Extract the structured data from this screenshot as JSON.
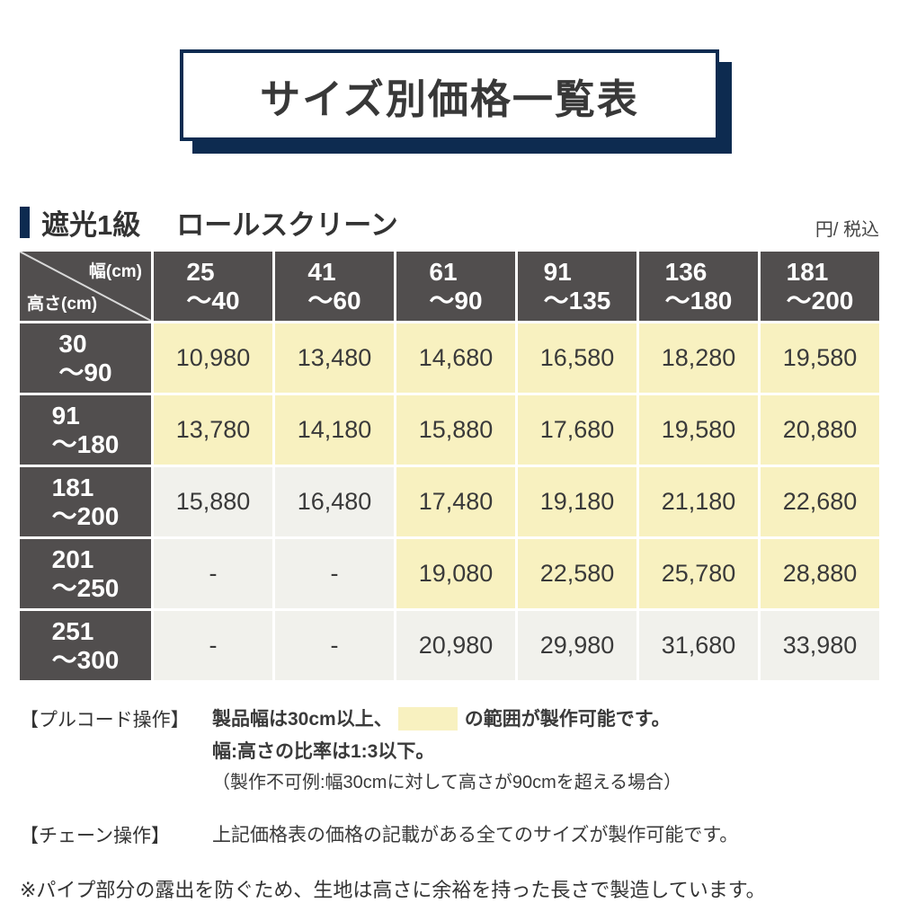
{
  "title": "サイズ別価格一覧表",
  "section": {
    "grade": "遮光1級",
    "product": "ロールスクリーン",
    "unit": "円/ 税込"
  },
  "table": {
    "corner": {
      "width_label": "幅(cm)",
      "height_label": "高さ(cm)"
    },
    "columns": [
      {
        "from": "25",
        "to": "〜40"
      },
      {
        "from": "41",
        "to": "〜60"
      },
      {
        "from": "61",
        "to": "〜90"
      },
      {
        "from": "91",
        "to": "〜135"
      },
      {
        "from": "136",
        "to": "〜180"
      },
      {
        "from": "181",
        "to": "〜200"
      }
    ],
    "rows": [
      {
        "from": "30",
        "to": "〜90",
        "cells": [
          {
            "v": "10,980",
            "hl": true
          },
          {
            "v": "13,480",
            "hl": true
          },
          {
            "v": "14,680",
            "hl": true
          },
          {
            "v": "16,580",
            "hl": true
          },
          {
            "v": "18,280",
            "hl": true
          },
          {
            "v": "19,580",
            "hl": true
          }
        ]
      },
      {
        "from": "91",
        "to": "〜180",
        "cells": [
          {
            "v": "13,780",
            "hl": true
          },
          {
            "v": "14,180",
            "hl": true
          },
          {
            "v": "15,880",
            "hl": true
          },
          {
            "v": "17,680",
            "hl": true
          },
          {
            "v": "19,580",
            "hl": true
          },
          {
            "v": "20,880",
            "hl": true
          }
        ]
      },
      {
        "from": "181",
        "to": "〜200",
        "cells": [
          {
            "v": "15,880",
            "hl": false
          },
          {
            "v": "16,480",
            "hl": false
          },
          {
            "v": "17,480",
            "hl": true
          },
          {
            "v": "19,180",
            "hl": true
          },
          {
            "v": "21,180",
            "hl": true
          },
          {
            "v": "22,680",
            "hl": true
          }
        ]
      },
      {
        "from": "201",
        "to": "〜250",
        "cells": [
          {
            "v": "-",
            "hl": false
          },
          {
            "v": "-",
            "hl": false
          },
          {
            "v": "19,080",
            "hl": true
          },
          {
            "v": "22,580",
            "hl": true
          },
          {
            "v": "25,780",
            "hl": true
          },
          {
            "v": "28,880",
            "hl": true
          }
        ]
      },
      {
        "from": "251",
        "to": "〜300",
        "cells": [
          {
            "v": "-",
            "hl": false
          },
          {
            "v": "-",
            "hl": false
          },
          {
            "v": "20,980",
            "hl": false
          },
          {
            "v": "29,980",
            "hl": false
          },
          {
            "v": "31,680",
            "hl": false
          },
          {
            "v": "33,980",
            "hl": false
          }
        ]
      }
    ]
  },
  "notes": {
    "pullcord": {
      "label": "【プルコード操作】",
      "line1_before": "製品幅は30cm以上、",
      "line1_after": "の範囲が製作可能です。",
      "line2": "幅:高さの比率は1:3以下。",
      "line3": "（製作不可例:幅30cmに対して高さが90cmを超える場合）"
    },
    "chain": {
      "label": "【チェーン操作】",
      "text": "上記価格表の価格の記載がある全てのサイズが製作可能です。"
    },
    "footnote": "※パイプ部分の露出を防ぐため、生地は高さに余裕を持った長さで製造しています。"
  },
  "colors": {
    "navy": "#0d2b50",
    "header_bg": "#514e4e",
    "highlight": "#f8f1c0",
    "plain_cell": "#f1f1ec"
  }
}
